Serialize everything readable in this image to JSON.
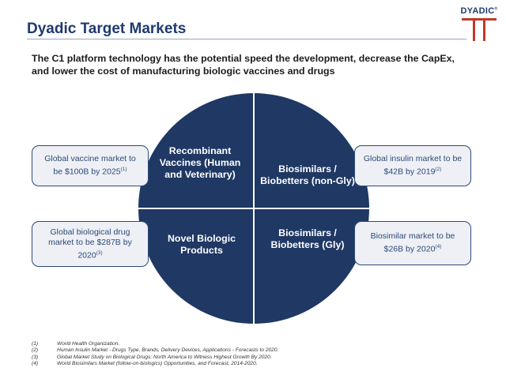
{
  "header": {
    "title": "Dyadic Target Markets",
    "logo_text": "DYADIC",
    "logo_mark": "®"
  },
  "subtitle": "The C1 platform technology has the potential speed the development, decrease the CapEx, and lower the cost of manufacturing biologic vaccines and drugs",
  "quadrants": {
    "top_left": "Recombinant Vaccines (Human and Veterinary)",
    "top_right": "Biosimilars / Biobetters (non-Gly)",
    "bottom_left": "Novel Biologic Products",
    "bottom_right": "Biosimilars / Biobetters (Gly)"
  },
  "boxes": {
    "vaccine": {
      "text": "Global vaccine market to be $100B by 2025",
      "ref": "(1)"
    },
    "biological": {
      "text": "Global biological drug market to be $287B by 2020",
      "ref": "(3)"
    },
    "insulin": {
      "text": "Global insulin market to be $42B by 2019",
      "ref": "(2)"
    },
    "biosimilar": {
      "text": "Biosimilar market to be $26B by 2020",
      "ref": "(4)"
    }
  },
  "footnotes": [
    {
      "num": "(1)",
      "text": "World Health Organization."
    },
    {
      "num": "(2)",
      "text": "Human Insulin Market - Drugs Type, Brands, Delivery Devices, Applications - Forecasts to 2020."
    },
    {
      "num": "(3)",
      "text": "Global Market Study on Biological Drugs: North America to Witness Highest Growth By 2020."
    },
    {
      "num": "(4)",
      "text": "World Biosimilars Market (follow-on-biologics) Opportunities, and Forecast, 2014-2020."
    }
  ],
  "colors": {
    "navy": "#1f3864",
    "title_blue": "#1f3a6e",
    "logo_red": "#c0392b",
    "box_border": "#2d4a7a"
  }
}
